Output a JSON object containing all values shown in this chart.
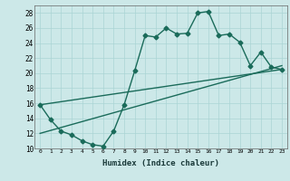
{
  "title": "",
  "xlabel": "Humidex (Indice chaleur)",
  "ylabel": "",
  "bg_color": "#cce8e8",
  "line_color": "#1a6b5a",
  "xlim": [
    -0.5,
    23.5
  ],
  "ylim": [
    10,
    29
  ],
  "xticks": [
    0,
    1,
    2,
    3,
    4,
    5,
    6,
    7,
    8,
    9,
    10,
    11,
    12,
    13,
    14,
    15,
    16,
    17,
    18,
    19,
    20,
    21,
    22,
    23
  ],
  "yticks": [
    10,
    12,
    14,
    16,
    18,
    20,
    22,
    24,
    26,
    28
  ],
  "series1_x": [
    0,
    1,
    2,
    3,
    4,
    5,
    6,
    7,
    8,
    9,
    10,
    11,
    12,
    13,
    14,
    15,
    16,
    17,
    18,
    19,
    20,
    21,
    22,
    23
  ],
  "series1_y": [
    15.8,
    13.8,
    12.3,
    11.8,
    11.0,
    10.5,
    10.3,
    12.3,
    15.8,
    20.3,
    25.0,
    24.8,
    26.0,
    25.2,
    25.3,
    28.0,
    28.2,
    25.0,
    25.2,
    24.1,
    21.0,
    22.8,
    20.8,
    20.5
  ],
  "series2_x": [
    0,
    23
  ],
  "series2_y": [
    12.0,
    21.0
  ],
  "series3_x": [
    0,
    23
  ],
  "series3_y": [
    15.8,
    20.5
  ],
  "grid_color": "#aad4d4",
  "marker": "D",
  "markersize": 2.5,
  "linewidth": 1.0
}
